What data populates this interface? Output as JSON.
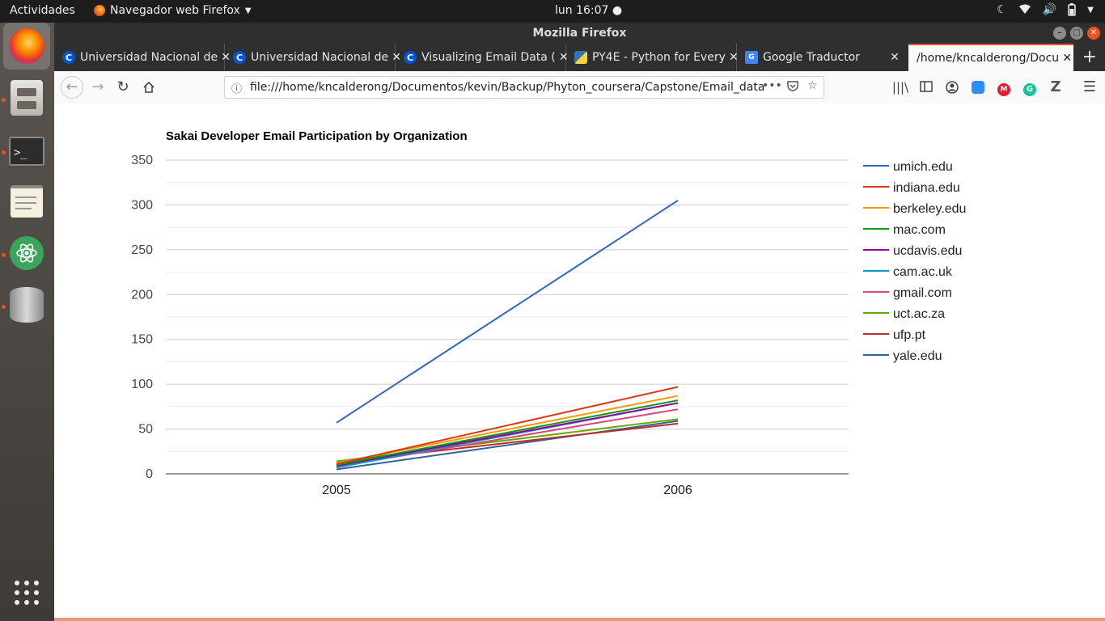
{
  "topbar": {
    "activities": "Actividades",
    "app_name": "Navegador web Firefox",
    "clock": "lun 16:07"
  },
  "window": {
    "title": "Mozilla Firefox"
  },
  "tabs": [
    {
      "label": "Universidad Nacional de",
      "icon": "coursera-icon"
    },
    {
      "label": "Universidad Nacional de",
      "icon": "coursera-icon"
    },
    {
      "label": "Visualizing Email Data (",
      "icon": "coursera-icon"
    },
    {
      "label": "PY4E - Python for Every",
      "icon": "python-icon"
    },
    {
      "label": "Google Traductor",
      "icon": "google-translate-icon"
    },
    {
      "label": "/home/kncalderong/Docu",
      "icon": ""
    }
  ],
  "navbar": {
    "url": "file:///home/kncalderong/Documentos/kevin/Backup/Phyton_coursera/Capstone/Email_data"
  },
  "chart_data": {
    "type": "line",
    "title": "Sakai Developer Email Participation by Organization",
    "xlabel": "",
    "ylabel": "",
    "categories": [
      "2005",
      "2006"
    ],
    "ylim": [
      0,
      350
    ],
    "yticks": [
      0,
      50,
      100,
      150,
      200,
      250,
      300,
      350
    ],
    "grid": true,
    "legend_position": "right",
    "series": [
      {
        "name": "umich.edu",
        "color": "#3366cc",
        "values": [
          57,
          305
        ]
      },
      {
        "name": "indiana.edu",
        "color": "#dc3912",
        "values": [
          11,
          97
        ]
      },
      {
        "name": "berkeley.edu",
        "color": "#ff9900",
        "values": [
          12,
          87
        ]
      },
      {
        "name": "mac.com",
        "color": "#109618",
        "values": [
          10,
          82
        ]
      },
      {
        "name": "ucdavis.edu",
        "color": "#990099",
        "values": [
          9,
          79
        ]
      },
      {
        "name": "cam.ac.uk",
        "color": "#0099c6",
        "values": [
          7,
          79
        ]
      },
      {
        "name": "gmail.com",
        "color": "#dd4477",
        "values": [
          8,
          72
        ]
      },
      {
        "name": "uct.ac.za",
        "color": "#66aa00",
        "values": [
          14,
          61
        ]
      },
      {
        "name": "ufp.pt",
        "color": "#b82e2e",
        "values": [
          13,
          56
        ]
      },
      {
        "name": "yale.edu",
        "color": "#316395",
        "values": [
          5,
          59
        ]
      }
    ]
  }
}
